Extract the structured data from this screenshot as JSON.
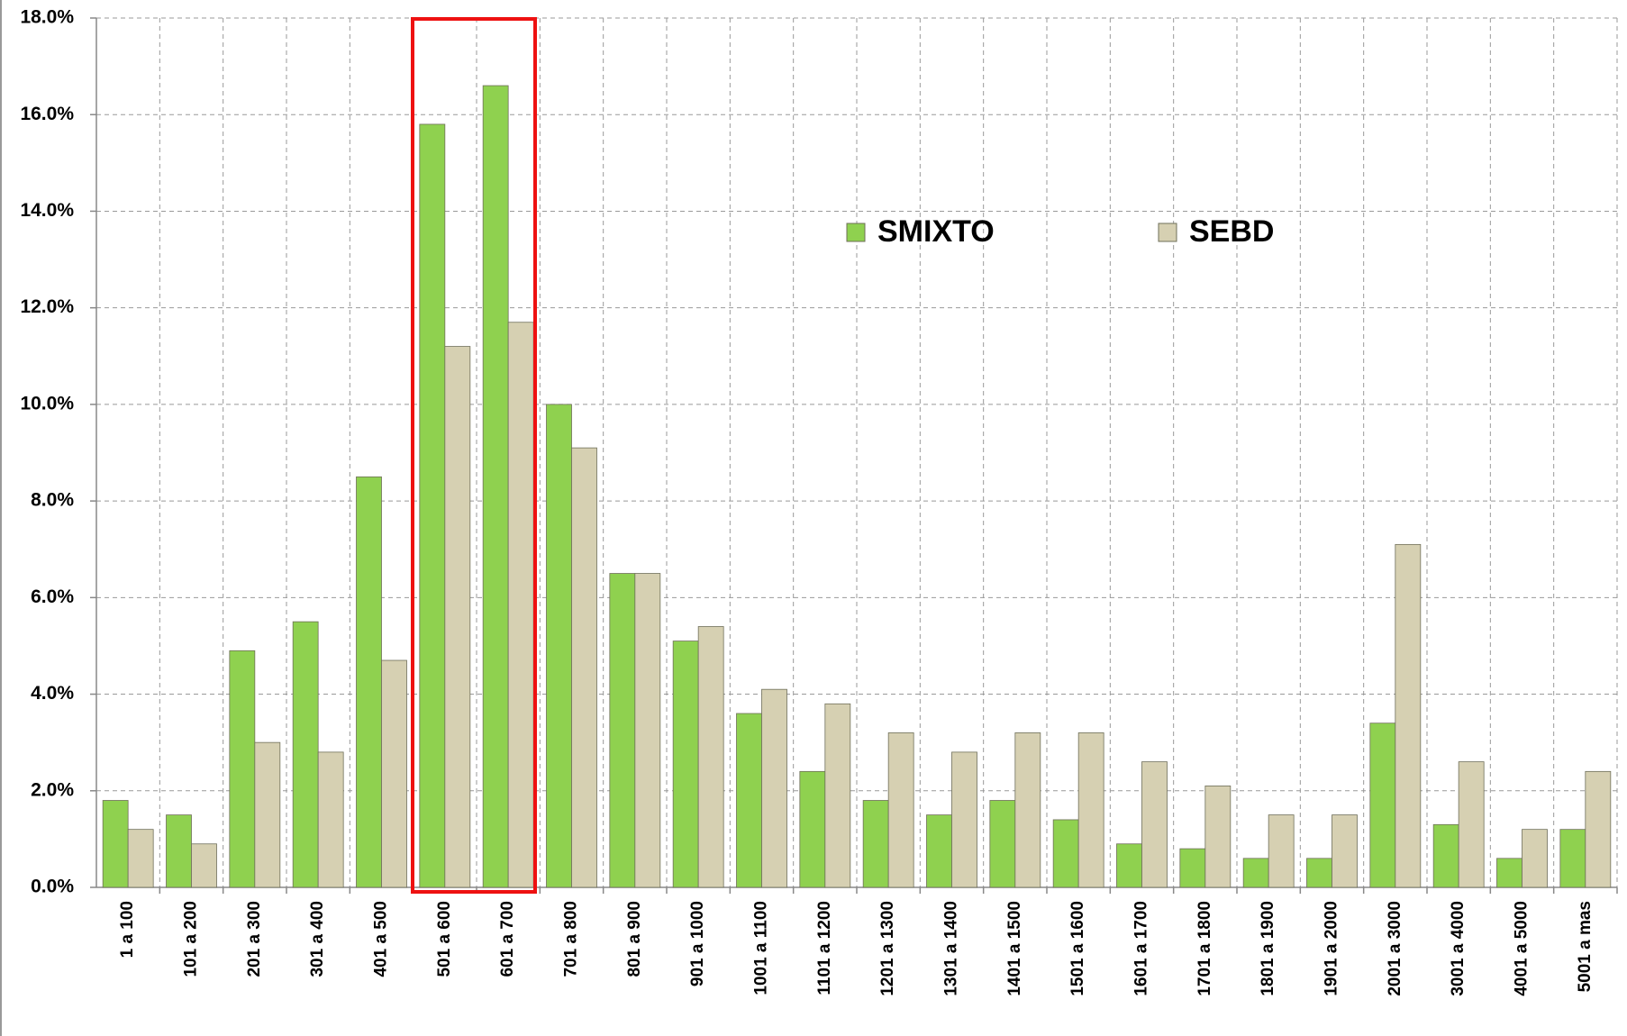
{
  "chart_data": {
    "type": "bar",
    "categories": [
      "1 a 100",
      "101 a 200",
      "201 a 300",
      "301 a 400",
      "401 a 500",
      "501 a 600",
      "601 a 700",
      "701 a 800",
      "801 a 900",
      "901 a 1000",
      "1001 a 1100",
      "1101 a 1200",
      "1201 a 1300",
      "1301 a 1400",
      "1401 a 1500",
      "1501 a 1600",
      "1601 a 1700",
      "1701 a 1800",
      "1801 a 1900",
      "1901 a 2000",
      "2001 a 3000",
      "3001 a 4000",
      "4001 a 5000",
      "5001 a mas"
    ],
    "series": [
      {
        "name": "SMIXTO",
        "color": "#8fd14f",
        "values": [
          1.8,
          1.5,
          4.9,
          5.5,
          8.5,
          15.8,
          16.6,
          10.0,
          6.5,
          5.1,
          3.6,
          2.4,
          1.8,
          1.5,
          1.8,
          1.4,
          0.9,
          0.8,
          0.6,
          0.6,
          3.4,
          1.3,
          0.6,
          1.2
        ]
      },
      {
        "name": "SEBD",
        "color": "#d6d0b2",
        "values": [
          1.2,
          0.9,
          3.0,
          2.8,
          4.7,
          11.2,
          11.7,
          9.1,
          6.5,
          5.4,
          4.1,
          3.8,
          3.2,
          2.8,
          3.2,
          3.2,
          2.6,
          2.1,
          1.5,
          1.5,
          7.1,
          2.6,
          1.2,
          2.4
        ]
      }
    ],
    "ylim": [
      0,
      18
    ],
    "yticks": [
      {
        "value": 0,
        "label": "0.0%"
      },
      {
        "value": 2,
        "label": "2.0%"
      },
      {
        "value": 4,
        "label": "4.0%"
      },
      {
        "value": 6,
        "label": "6.0%"
      },
      {
        "value": 8,
        "label": "8.0%"
      },
      {
        "value": 10,
        "label": "10.0%"
      },
      {
        "value": 12,
        "label": "12.0%"
      },
      {
        "value": 14,
        "label": "14.0%"
      },
      {
        "value": 16,
        "label": "16.0%"
      },
      {
        "value": 18,
        "label": "18.0%"
      }
    ],
    "grid": true
  }
}
